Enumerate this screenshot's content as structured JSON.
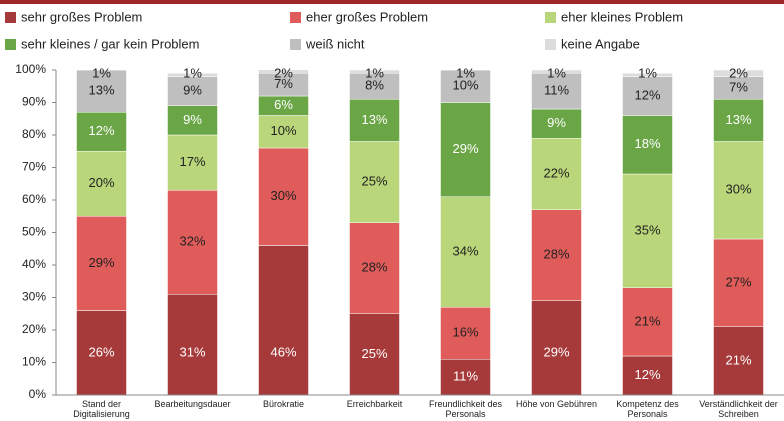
{
  "chart_data": {
    "type": "stacked_bar",
    "categories": [
      "Stand der Digitalisierung",
      "Bearbeitungsdauer",
      "Bürokratie",
      "Erreichbarkeit",
      "Freundlichkeit des Personals",
      "Höhe von Gebühren",
      "Kompetenz des Personals",
      "Verständlichkeit der Schreiben"
    ],
    "series": [
      {
        "name": "sehr großes Problem",
        "color": "#a63a3a",
        "label_color": "#ffffff",
        "values": [
          26,
          31,
          46,
          25,
          11,
          29,
          12,
          21
        ],
        "value_labels": [
          "26%",
          "31%",
          "46%",
          "25%",
          "11%",
          "29%",
          "12%",
          "21%"
        ]
      },
      {
        "name": "eher großes Problem",
        "color": "#e05c5a",
        "label_color": "#222222",
        "values": [
          29,
          32,
          30,
          28,
          16,
          28,
          21,
          27
        ],
        "value_labels": [
          "29%",
          "32%",
          "30%",
          "28%",
          "16%",
          "28%",
          "21%",
          "27%"
        ]
      },
      {
        "name": "eher kleines Problem",
        "color": "#b9d77a",
        "label_color": "#222222",
        "values": [
          20,
          17,
          10,
          25,
          34,
          22,
          35,
          30
        ],
        "value_labels": [
          "20%",
          "17%",
          "10%",
          "25%",
          "34%",
          "22%",
          "35%",
          "30%"
        ]
      },
      {
        "name": "sehr kleines / gar kein Problem",
        "color": "#6aa646",
        "label_color": "#ffffff",
        "values": [
          12,
          9,
          6,
          13,
          29,
          9,
          18,
          13
        ],
        "value_labels": [
          "12%",
          "9%",
          "6%",
          "13%",
          "29%",
          "9%",
          "18%",
          "13%"
        ]
      },
      {
        "name": "weiß nicht",
        "color": "#bfbfbf",
        "label_color": "#222222",
        "values": [
          13,
          9,
          7,
          8,
          10,
          11,
          12,
          7
        ],
        "value_labels": [
          "13%",
          "9%",
          "7%",
          "8%",
          "10%",
          "11%",
          "12%",
          "7%"
        ]
      },
      {
        "name": "keine Angabe",
        "color": "#dcdcdc",
        "label_color": "#222222",
        "values": [
          1,
          1,
          2,
          1,
          1,
          1,
          1,
          2
        ],
        "value_labels": [
          "1%",
          "1%",
          "2%",
          "1%",
          "1%",
          "1%",
          "1%",
          "2%"
        ]
      }
    ],
    "ylim": [
      0,
      100
    ],
    "yticks": [
      {
        "value": 0,
        "label": "0%"
      },
      {
        "value": 10,
        "label": "10%"
      },
      {
        "value": 20,
        "label": "20%"
      },
      {
        "value": 30,
        "label": "30%"
      },
      {
        "value": 40,
        "label": "40%"
      },
      {
        "value": 50,
        "label": "50%"
      },
      {
        "value": 60,
        "label": "60%"
      },
      {
        "value": 70,
        "label": "70%"
      },
      {
        "value": 80,
        "label": "80%"
      },
      {
        "value": 90,
        "label": "90%"
      },
      {
        "value": 100,
        "label": "100%"
      }
    ],
    "grid": false
  }
}
